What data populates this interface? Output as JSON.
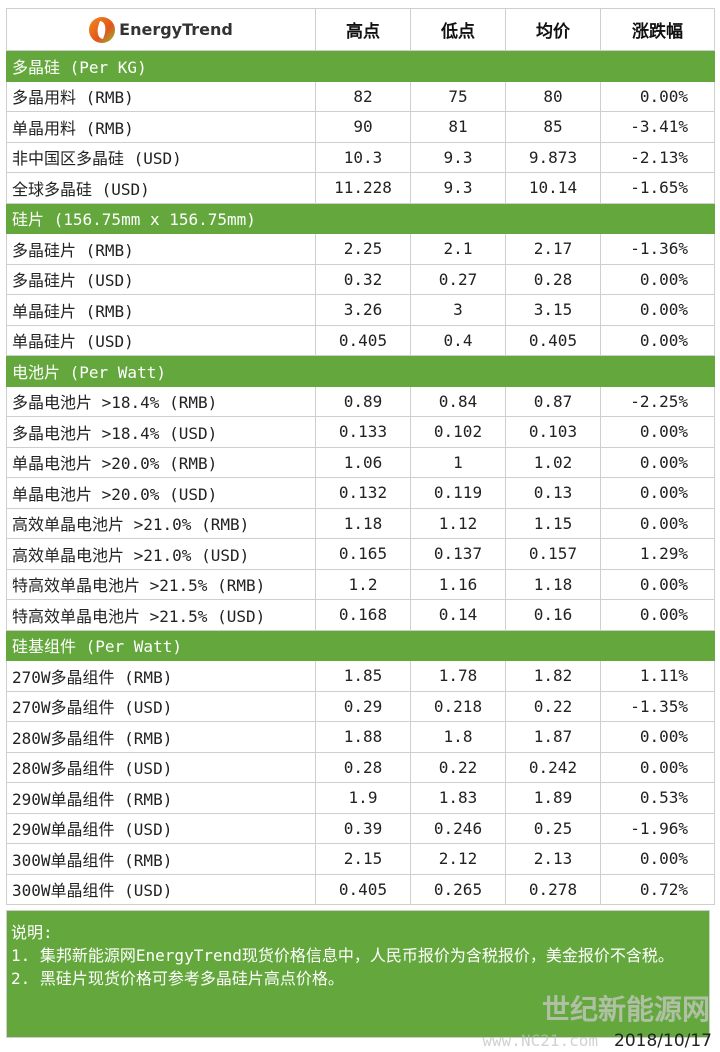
{
  "header": {
    "logo_text": "EnergyTrend",
    "columns": [
      "高点",
      "低点",
      "均价",
      "涨跌幅"
    ]
  },
  "sections": [
    {
      "title": "多晶硅 (Per KG)",
      "rows": [
        [
          "多晶用料 (RMB)",
          "82",
          "75",
          "80",
          "0.00%"
        ],
        [
          "单晶用料 (RMB)",
          "90",
          "81",
          "85",
          "-3.41%"
        ],
        [
          "非中国区多晶硅 (USD)",
          "10.3",
          "9.3",
          "9.873",
          "-2.13%"
        ],
        [
          "全球多晶硅 (USD)",
          "11.228",
          "9.3",
          "10.14",
          "-1.65%"
        ]
      ]
    },
    {
      "title": "硅片 (156.75mm x 156.75mm)",
      "rows": [
        [
          "多晶硅片 (RMB)",
          "2.25",
          "2.1",
          "2.17",
          "-1.36%"
        ],
        [
          "多晶硅片 (USD)",
          "0.32",
          "0.27",
          "0.28",
          "0.00%"
        ],
        [
          "单晶硅片 (RMB)",
          "3.26",
          "3",
          "3.15",
          "0.00%"
        ],
        [
          "单晶硅片 (USD)",
          "0.405",
          "0.4",
          "0.405",
          "0.00%"
        ]
      ]
    },
    {
      "title": "电池片 (Per Watt)",
      "rows": [
        [
          "多晶电池片  >18.4% (RMB)",
          "0.89",
          "0.84",
          "0.87",
          "-2.25%"
        ],
        [
          "多晶电池片  >18.4% (USD)",
          "0.133",
          "0.102",
          "0.103",
          "0.00%"
        ],
        [
          "单晶电池片 >20.0% (RMB)",
          "1.06",
          "1",
          "1.02",
          "0.00%"
        ],
        [
          "单晶电池片 >20.0% (USD)",
          "0.132",
          "0.119",
          "0.13",
          "0.00%"
        ],
        [
          "高效单晶电池片 >21.0% (RMB)",
          "1.18",
          "1.12",
          "1.15",
          "0.00%"
        ],
        [
          "高效单晶电池片 >21.0% (USD)",
          "0.165",
          "0.137",
          "0.157",
          "1.29%"
        ],
        [
          "特高效单晶电池片 >21.5% (RMB)",
          "1.2",
          "1.16",
          "1.18",
          "0.00%"
        ],
        [
          "特高效单晶电池片 >21.5% (USD)",
          "0.168",
          "0.14",
          "0.16",
          "0.00%"
        ]
      ]
    },
    {
      "title": "硅基组件 (Per Watt)",
      "rows": [
        [
          "270W多晶组件 (RMB)",
          "1.85",
          "1.78",
          "1.82",
          "1.11%"
        ],
        [
          "270W多晶组件 (USD)",
          "0.29",
          "0.218",
          "0.22",
          "-1.35%"
        ],
        [
          "280W多晶组件 (RMB)",
          "1.88",
          "1.8",
          "1.87",
          "0.00%"
        ],
        [
          "280W多晶组件 (USD)",
          "0.28",
          "0.22",
          "0.242",
          "0.00%"
        ],
        [
          "290W单晶组件 (RMB)",
          "1.9",
          "1.83",
          "1.89",
          "0.53%"
        ],
        [
          "290W单晶组件 (USD)",
          "0.39",
          "0.246",
          "0.25",
          "-1.96%"
        ],
        [
          "300W单晶组件 (RMB)",
          "2.15",
          "2.12",
          "2.13",
          "0.00%"
        ],
        [
          "300W单晶组件 (USD)",
          "0.405",
          "0.265",
          "0.278",
          "0.72%"
        ]
      ]
    }
  ],
  "notes": {
    "title": "说明:",
    "items": [
      "1. 集邦新能源网EnergyTrend现货价格信息中，人民币报价为含税报价，美金报价不含税。",
      "2. 黑硅片现货价格可参考多晶硅片高点价格。"
    ]
  },
  "date": "2018/10/17",
  "watermark": {
    "text": "世纪新能源网",
    "url_text": "www.NC21.com"
  },
  "colors": {
    "section_green": "#64a83d"
  }
}
